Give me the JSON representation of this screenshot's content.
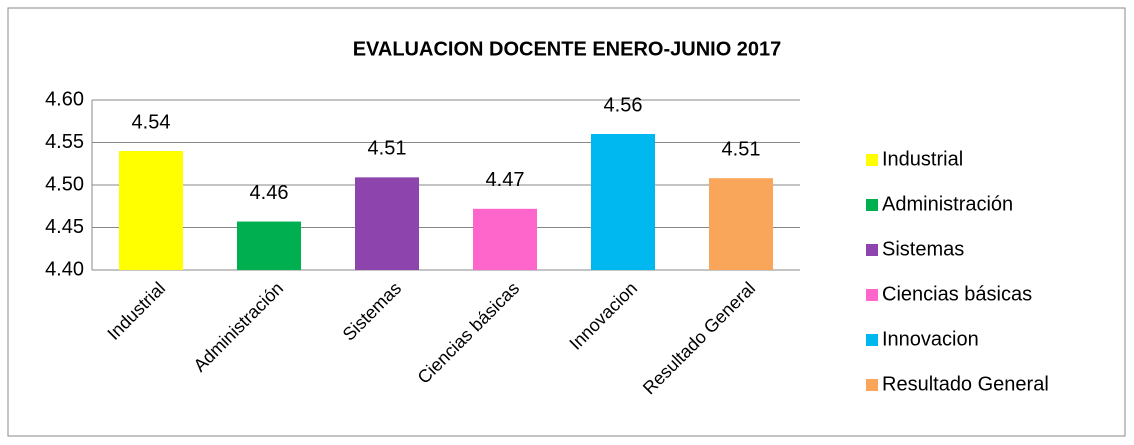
{
  "chart_data": {
    "type": "bar",
    "title": "EVALUACION DOCENTE ENERO-JUNIO 2017",
    "categories": [
      "Industrial",
      "Administración",
      "Sistemas",
      "Ciencias básicas",
      "Innovacion",
      "Resultado General"
    ],
    "values": [
      4.54,
      4.457,
      4.509,
      4.472,
      4.56,
      4.508
    ],
    "value_labels": [
      "4.54",
      "4.46",
      "4.51",
      "4.47",
      "4.56",
      "4.51"
    ],
    "colors": [
      "#ffff00",
      "#00b050",
      "#8e44ad",
      "#ff66cc",
      "#00b8f0",
      "#f9a65a"
    ],
    "ylim": [
      4.4,
      4.6
    ],
    "yticks": [
      {
        "value": 4.4,
        "label": "4.40"
      },
      {
        "value": 4.45,
        "label": "4.45"
      },
      {
        "value": 4.5,
        "label": "4.50"
      },
      {
        "value": 4.55,
        "label": "4.55"
      },
      {
        "value": 4.6,
        "label": "4.60"
      }
    ],
    "grid": true,
    "legend": "right"
  }
}
